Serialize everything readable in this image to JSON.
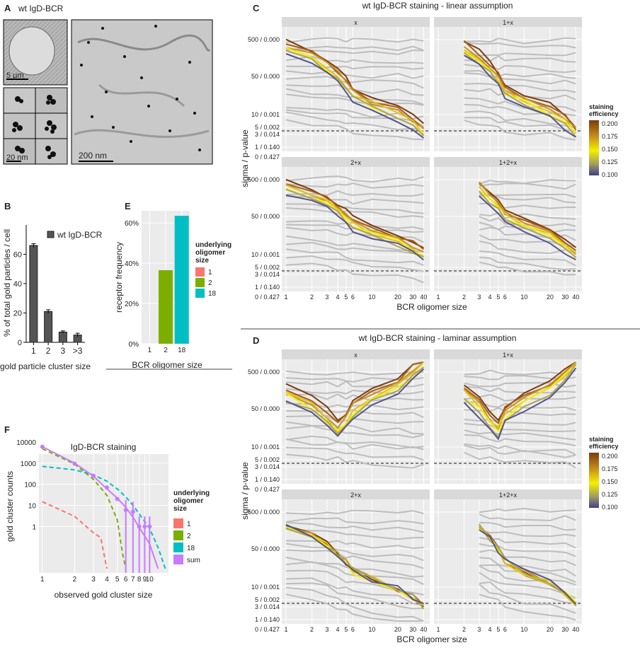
{
  "panel_labels": {
    "A": "A",
    "B": "B",
    "C": "C",
    "D": "D",
    "E": "E",
    "F": "F"
  },
  "panelA": {
    "title": "wt IgD-BCR",
    "scale_5um": "5 µm",
    "scale_20nm": "20 nm",
    "scale_200nm": "200 nm"
  },
  "chart_data": [
    {
      "id": "B",
      "type": "bar",
      "categories": [
        "1",
        "2",
        "3",
        ">3"
      ],
      "values": [
        66,
        21,
        7,
        5
      ],
      "errors": [
        1.2,
        1.2,
        0.8,
        1.2
      ],
      "title": "",
      "legend": [
        "wt IgD-BCR"
      ],
      "xlabel": "gold particle cluster size",
      "ylabel": "% of total gold particles / cell",
      "yticks": [
        0,
        20,
        40,
        60
      ],
      "ylim": [
        0,
        80
      ]
    },
    {
      "id": "E",
      "type": "bar",
      "categories": [
        "1",
        "2",
        "18"
      ],
      "values": [
        0,
        36.5,
        63.5
      ],
      "colors": [
        "#f8766d",
        "#7cae00",
        "#00bfc4"
      ],
      "xlabel": "BCR oligomer size",
      "ylabel": "receptor frequency",
      "yticks": [
        "0%",
        "20%",
        "40%",
        "60%"
      ],
      "ylim": [
        0,
        66
      ],
      "legend_title": "underlying oligomer size",
      "legend": [
        "1",
        "2",
        "18"
      ]
    },
    {
      "id": "F",
      "type": "line",
      "title": "IgD-BCR staining",
      "xlabel": "observed gold cluster size",
      "ylabel": "gold cluster counts",
      "xticks": [
        "1",
        "2",
        "3",
        "4",
        "5",
        "6",
        "7",
        "8",
        "9",
        "10"
      ],
      "yticks": [
        "10000",
        "1000",
        "100",
        "10",
        "1"
      ],
      "legend_title": "underlying oligomer size",
      "legend": [
        "1",
        "2",
        "18",
        "sum"
      ],
      "colors": [
        "#f8766d",
        "#7cae00",
        "#00bfc4",
        "#c77cff"
      ],
      "series": [
        {
          "name": "1",
          "x": [
            1,
            2,
            3,
            3.5,
            4
          ],
          "y": [
            15,
            3,
            0.5,
            0.3,
            0.01
          ]
        },
        {
          "name": "2",
          "x": [
            1,
            2,
            3,
            4,
            5,
            5.6,
            6
          ],
          "y": [
            4800,
            900,
            170,
            30,
            2,
            0.05,
            0.01
          ]
        },
        {
          "name": "18",
          "x": [
            1,
            2,
            3,
            4,
            5,
            6,
            7,
            8,
            10,
            12,
            14
          ],
          "y": [
            700,
            480,
            280,
            140,
            60,
            25,
            10,
            4,
            0.8,
            0.1,
            0.01
          ]
        },
        {
          "name": "sum",
          "x": [
            1,
            2,
            3,
            4,
            5,
            6,
            7,
            8,
            10,
            12
          ],
          "y": [
            6000,
            1000,
            240,
            60,
            22,
            8,
            2.8,
            0.9,
            0.15,
            0.01
          ]
        }
      ],
      "points": {
        "x": [
          1,
          2,
          3,
          4,
          5,
          6,
          7,
          8,
          9,
          10
        ],
        "y": [
          6000,
          950,
          250,
          70,
          20,
          6,
          5,
          1,
          1,
          1
        ]
      }
    },
    {
      "id": "C",
      "type": "line",
      "title": "wt IgD-BCR staining  -  linear assumption",
      "facets": [
        "x",
        "1+x",
        "2+x",
        "1+2+x"
      ],
      "xlabel": "BCR oligomer size",
      "ylabel": "sigma / p-value",
      "yticks": [
        "500 / 0.000",
        "50 / 0.000",
        "10 / 0.001",
        "5 / 0.002",
        "3 / 0.014",
        "1 / 0.140",
        "0 / 0.427"
      ],
      "xticks": [
        "1",
        "2",
        "3",
        "4",
        "5",
        "6",
        "10",
        "20",
        "30",
        "40"
      ],
      "legend_title": "staining efficiency",
      "legend_ticks": [
        "0.200",
        "0.175",
        "0.150",
        "0.125",
        "0.100"
      ]
    },
    {
      "id": "D",
      "type": "line",
      "title": "wt IgD-BCR staining  -  laminar assumption",
      "facets": [
        "x",
        "1+x",
        "2+x",
        "1+2+x"
      ],
      "xlabel": "BCR oligomer size",
      "ylabel": "sigma / p-value",
      "yticks": [
        "500 / 0.000",
        "50 / 0.000",
        "10 / 0.001",
        "5 / 0.002",
        "3 / 0.014",
        "1 / 0.140",
        "0 / 0.427"
      ],
      "xticks": [
        "1",
        "2",
        "3",
        "4",
        "5",
        "6",
        "10",
        "20",
        "30",
        "40"
      ],
      "legend_title": "staining efficiency",
      "legend_ticks": [
        "0.200",
        "0.175",
        "0.150",
        "0.125",
        "0.100"
      ]
    }
  ]
}
